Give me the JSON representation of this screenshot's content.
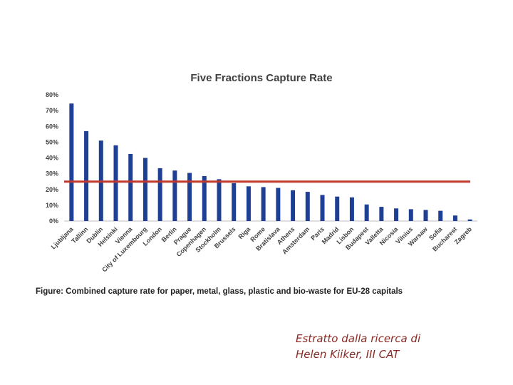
{
  "chart_data": {
    "type": "bar",
    "title": "Five Fractions Capture Rate",
    "categories": [
      "Ljubljana",
      "Tallinn",
      "Dublin",
      "Helsinki",
      "Vienna",
      "City of Luxembourg",
      "London",
      "Berlin",
      "Prague",
      "Copenhagen",
      "Stockholm",
      "Brussels",
      "Riga",
      "Rome",
      "Bratislava",
      "Athens",
      "Amsterdam",
      "Paris",
      "Madrid",
      "Lisbon",
      "Budapest",
      "Valletta",
      "Nicosia",
      "Vilnius",
      "Warsaw",
      "Sofia",
      "Bucharest",
      "Zagreb"
    ],
    "values": [
      74.5,
      57,
      51,
      48,
      42.5,
      40,
      33.5,
      32,
      30.5,
      28.5,
      26.5,
      24,
      22,
      21.5,
      21,
      19.5,
      18.5,
      16.5,
      15.5,
      15,
      10.5,
      9,
      8,
      7.5,
      7,
      6.5,
      3.5,
      1
    ],
    "reference_line": 25,
    "ylim": [
      0,
      80
    ],
    "yticks": [
      "0%",
      "10%",
      "20%",
      "30%",
      "40%",
      "50%",
      "60%",
      "70%",
      "80%"
    ],
    "bar_color": "#1f3f94",
    "line_color": "#c0392b",
    "grid": false,
    "legend": "none"
  },
  "caption": "Figure: Combined capture rate for paper, metal, glass, plastic and bio-waste for EU-28 capitals",
  "credit": {
    "line1": "Estratto dalla ricerca di",
    "line2": "Helen Kiiker, III CAT"
  }
}
